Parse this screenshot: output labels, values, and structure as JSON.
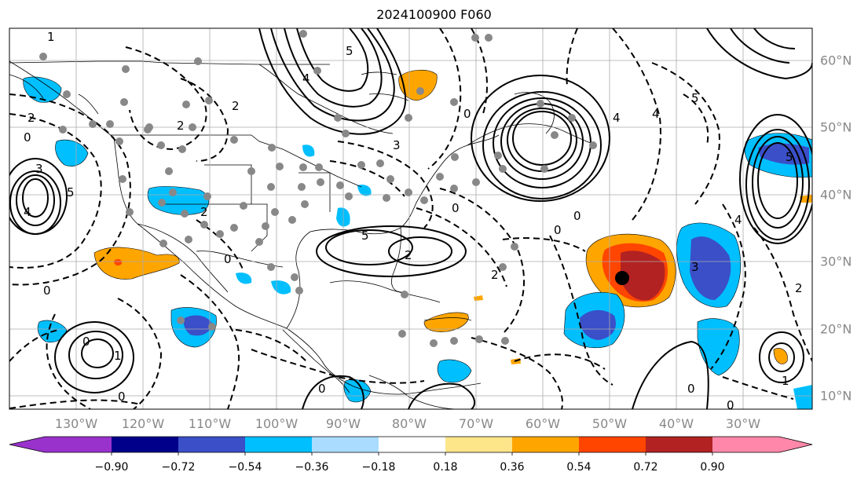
{
  "title": "2024100900 F060",
  "map": {
    "type": "map",
    "projection": "plate-carree",
    "lon_range": [
      -138,
      -17
    ],
    "lat_range": [
      7.5,
      65
    ],
    "grid": true,
    "lon_labels": [
      "130°W",
      "120°W",
      "110°W",
      "100°W",
      "90°W",
      "80°W",
      "70°W",
      "60°W",
      "50°W",
      "40°W",
      "30°W"
    ],
    "lat_labels": [
      "60°N",
      "50°N",
      "40°N",
      "30°N",
      "20°N",
      "10°N"
    ],
    "marker": {
      "lon": -48.5,
      "lat": 27.5
    }
  },
  "colorbar": {
    "ticks": [
      "−0.90",
      "−0.72",
      "−0.54",
      "−0.36",
      "−0.18",
      "0.18",
      "0.36",
      "0.54",
      "0.72",
      "0.90"
    ],
    "colors": [
      "#9932cc",
      "#00008b",
      "#3a4fc8",
      "#00bfff",
      "#aadcff",
      "#ffffff",
      "#fde58a",
      "#ffa500",
      "#ff4500",
      "#b22222",
      "#ff88aa"
    ]
  },
  "contour_labels": [
    "1",
    "2",
    "3",
    "4",
    "5",
    "0"
  ]
}
